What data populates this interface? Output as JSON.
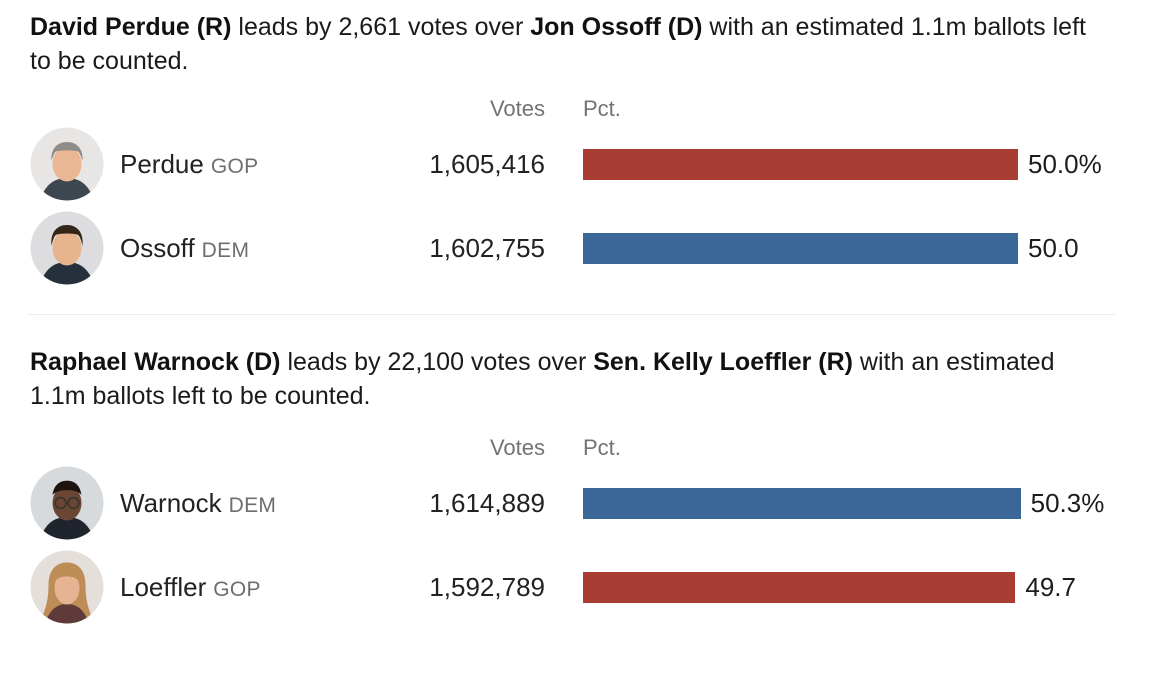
{
  "races": [
    {
      "headline": {
        "leader": "David Perdue (R)",
        "mid": " leads by 2,661 votes over ",
        "trailer": "Jon Ossoff (D)",
        "rest": " with an estimated 1.1m ballots left to be counted."
      },
      "headers": {
        "votes": "Votes",
        "pct": "Pct."
      },
      "candidates": [
        {
          "name": "Perdue",
          "party": "GOP",
          "votes": "1,605,416",
          "pct": 50.0,
          "pct_label": "50.0%",
          "bar_color": "#a93c33",
          "avatar": {
            "bg": "#e8e6e4",
            "skin": "#e9b794",
            "hair": "#8e8b88",
            "suit": "#3c4750"
          }
        },
        {
          "name": "Ossoff",
          "party": "DEM",
          "votes": "1,602,755",
          "pct": 50.0,
          "pct_label": "50.0",
          "bar_color": "#3a6698",
          "avatar": {
            "bg": "#dddddf",
            "skin": "#e8b48e",
            "hair": "#332619",
            "suit": "#26303d"
          }
        }
      ]
    },
    {
      "headline": {
        "leader": "Raphael Warnock (D)",
        "mid": " leads by 22,100 votes over ",
        "trailer": "Sen. Kelly Loeffler (R)",
        "rest": " with an estimated 1.1m ballots left to be counted."
      },
      "headers": {
        "votes": "Votes",
        "pct": "Pct."
      },
      "candidates": [
        {
          "name": "Warnock",
          "party": "DEM",
          "votes": "1,614,889",
          "pct": 50.3,
          "pct_label": "50.3%",
          "bar_color": "#3a6698",
          "avatar": {
            "bg": "#d6dadd",
            "skin": "#6b4634",
            "hair": "#1d1410",
            "suit": "#20242c"
          }
        },
        {
          "name": "Loeffler",
          "party": "GOP",
          "votes": "1,592,789",
          "pct": 49.7,
          "pct_label": "49.7",
          "bar_color": "#a93c33",
          "avatar": {
            "bg": "#e4dfda",
            "skin": "#e6b492",
            "hair": "#bd8d55",
            "suit": "#5f3a3a"
          }
        }
      ]
    }
  ],
  "chart_data": [
    {
      "type": "bar",
      "orientation": "horizontal",
      "title": "David Perdue (R) leads by 2,661 votes over Jon Ossoff (D) with an estimated 1.1m ballots left to be counted.",
      "categories": [
        "Perdue (GOP)",
        "Ossoff (DEM)"
      ],
      "series": [
        {
          "name": "Votes",
          "values": [
            1605416,
            1602755
          ]
        },
        {
          "name": "Pct.",
          "values": [
            50.0,
            50.0
          ]
        }
      ],
      "data_labels": {
        "votes": [
          "1,605,416",
          "1,602,755"
        ],
        "pct": [
          "50.0%",
          "50.0"
        ]
      },
      "bar_colors": [
        "#a93c33",
        "#3a6698"
      ],
      "xlabel": "Pct.",
      "ylabel": "",
      "xlim": [
        0,
        61
      ],
      "grid": false,
      "legend": "none"
    },
    {
      "type": "bar",
      "orientation": "horizontal",
      "title": "Raphael Warnock (D) leads by 22,100 votes over Sen. Kelly Loeffler (R) with an estimated 1.1m ballots left to be counted.",
      "categories": [
        "Warnock (DEM)",
        "Loeffler (GOP)"
      ],
      "series": [
        {
          "name": "Votes",
          "values": [
            1614889,
            1592789
          ]
        },
        {
          "name": "Pct.",
          "values": [
            50.3,
            49.7
          ]
        }
      ],
      "data_labels": {
        "votes": [
          "1,614,889",
          "1,592,789"
        ],
        "pct": [
          "50.3%",
          "49.7"
        ]
      },
      "bar_colors": [
        "#3a6698",
        "#a93c33"
      ],
      "xlabel": "Pct.",
      "ylabel": "",
      "xlim": [
        0,
        61
      ],
      "grid": false,
      "legend": "none"
    }
  ]
}
